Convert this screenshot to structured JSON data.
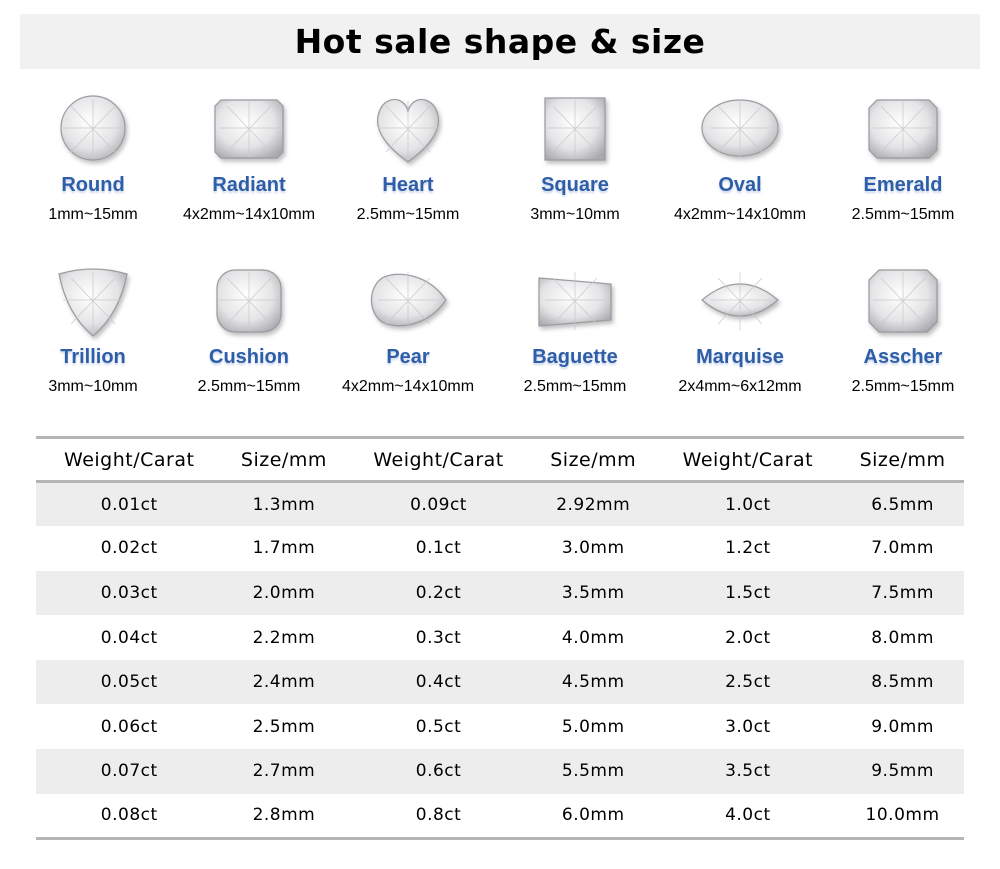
{
  "title": "Hot sale shape & size",
  "shapes": [
    {
      "name": "Round",
      "size": "1mm~15mm",
      "icon": "round-gem-icon"
    },
    {
      "name": "Radiant",
      "size": "4x2mm~14x10mm",
      "icon": "radiant-gem-icon"
    },
    {
      "name": "Heart",
      "size": "2.5mm~15mm",
      "icon": "heart-gem-icon"
    },
    {
      "name": "Square",
      "size": "3mm~10mm",
      "icon": "square-gem-icon"
    },
    {
      "name": "Oval",
      "size": "4x2mm~14x10mm",
      "icon": "oval-gem-icon"
    },
    {
      "name": "Emerald",
      "size": "2.5mm~15mm",
      "icon": "emerald-gem-icon"
    },
    {
      "name": "Trillion",
      "size": "3mm~10mm",
      "icon": "trillion-gem-icon"
    },
    {
      "name": "Cushion",
      "size": "2.5mm~15mm",
      "icon": "cushion-gem-icon"
    },
    {
      "name": "Pear",
      "size": "4x2mm~14x10mm",
      "icon": "pear-gem-icon"
    },
    {
      "name": "Baguette",
      "size": "2.5mm~15mm",
      "icon": "baguette-gem-icon"
    },
    {
      "name": "Marquise",
      "size": "2x4mm~6x12mm",
      "icon": "marquise-gem-icon"
    },
    {
      "name": "Asscher",
      "size": "2.5mm~15mm",
      "icon": "asscher-gem-icon"
    }
  ],
  "table": {
    "headers": [
      "Weight/Carat",
      "Size/mm",
      "Weight/Carat",
      "Size/mm",
      "Weight/Carat",
      "Size/mm"
    ],
    "rows": [
      [
        "0.01ct",
        "1.3mm",
        "0.09ct",
        "2.92mm",
        "1.0ct",
        "6.5mm"
      ],
      [
        "0.02ct",
        "1.7mm",
        "0.1ct",
        "3.0mm",
        "1.2ct",
        "7.0mm"
      ],
      [
        "0.03ct",
        "2.0mm",
        "0.2ct",
        "3.5mm",
        "1.5ct",
        "7.5mm"
      ],
      [
        "0.04ct",
        "2.2mm",
        "0.3ct",
        "4.0mm",
        "2.0ct",
        "8.0mm"
      ],
      [
        "0.05ct",
        "2.4mm",
        "0.4ct",
        "4.5mm",
        "2.5ct",
        "8.5mm"
      ],
      [
        "0.06ct",
        "2.5mm",
        "0.5ct",
        "5.0mm",
        "3.0ct",
        "9.0mm"
      ],
      [
        "0.07ct",
        "2.7mm",
        "0.6ct",
        "5.5mm",
        "3.5ct",
        "9.5mm"
      ],
      [
        "0.08ct",
        "2.8mm",
        "0.8ct",
        "6.0mm",
        "4.0ct",
        "10.0mm"
      ]
    ]
  },
  "colors": {
    "label": "#2e5ea8",
    "title_bg": "#f1f1f1",
    "row_alt": "#ededed"
  }
}
